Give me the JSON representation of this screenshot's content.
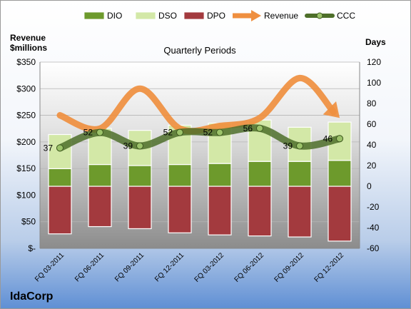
{
  "chart_data": {
    "type": "bar",
    "title": "Quarterly Periods",
    "company": "IdaCorp",
    "left_axis_label": "Revenue\n$millions",
    "right_axis_label": "Days",
    "categories": [
      "FQ 03-2011",
      "FQ 06-2011",
      "FQ 09-2011",
      "FQ 12-2011",
      "FQ 03-2012",
      "FQ 06-2012",
      "FQ 09-2012",
      "FQ 12-2012"
    ],
    "left_ylim": [
      0,
      350
    ],
    "left_ticks": [
      "$-",
      "$50",
      "$100",
      "$150",
      "$200",
      "$250",
      "$300",
      "$350"
    ],
    "left_tick_values": [
      0,
      50,
      100,
      150,
      200,
      250,
      300,
      350
    ],
    "right_ylim": [
      -60,
      120
    ],
    "right_ticks": [
      "-60",
      "-40",
      "-20",
      "0",
      "20",
      "40",
      "60",
      "80",
      "100",
      "120"
    ],
    "right_tick_values": [
      -60,
      -40,
      -20,
      0,
      20,
      40,
      60,
      80,
      100,
      120
    ],
    "legend": {
      "position": "top",
      "entries": [
        "DIO",
        "DSO",
        "DPO",
        "Revenue",
        "CCC"
      ]
    },
    "colors": {
      "dio": "#6d9a2c",
      "dso": "#d3e8a7",
      "dpo": "#a33a3e",
      "revenue": "#ef8f3f",
      "ccc": "#4e6f2a"
    },
    "series": [
      {
        "name": "DIO",
        "axis": "right",
        "values": [
          17,
          21,
          20,
          21,
          22,
          24,
          24,
          25
        ]
      },
      {
        "name": "DSO",
        "axis": "right",
        "values": [
          33,
          35,
          34,
          38,
          39,
          40,
          33,
          37
        ]
      },
      {
        "name": "DPO",
        "axis": "right",
        "values": [
          -46,
          -39,
          -41,
          -45,
          -47,
          -48,
          -49,
          -53
        ]
      },
      {
        "name": "Revenue",
        "axis": "left",
        "values": [
          250,
          225,
          300,
          225,
          230,
          245,
          320,
          245
        ]
      },
      {
        "name": "CCC",
        "axis": "right",
        "values": [
          37,
          52,
          39,
          52,
          52,
          56,
          39,
          46
        ]
      }
    ],
    "data_labels": [
      "37",
      "52",
      "39",
      "52",
      "52",
      "56",
      "39",
      "46"
    ],
    "grid": true
  }
}
